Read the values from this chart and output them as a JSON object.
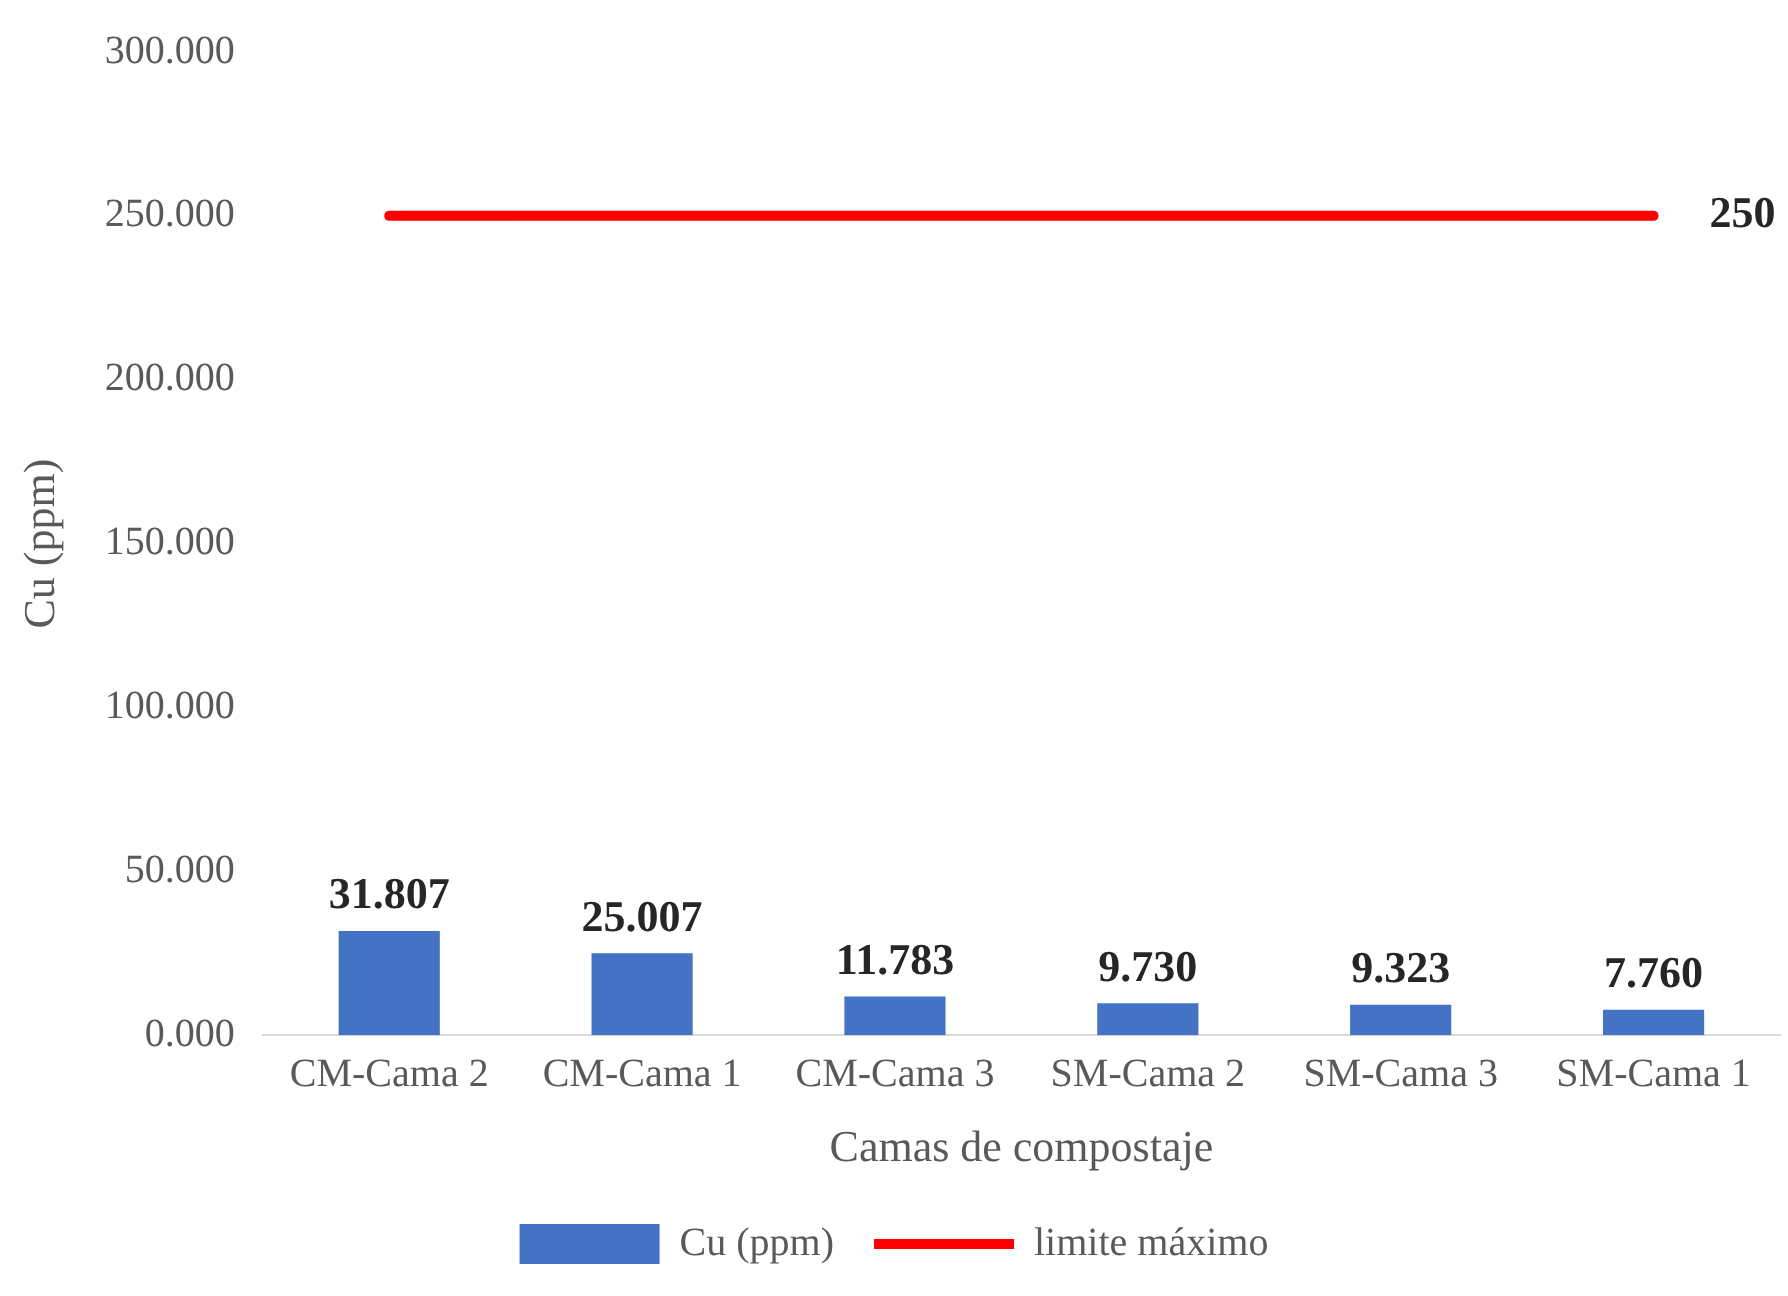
{
  "chart_data": {
    "type": "bar",
    "xlabel": "Camas de compostaje",
    "ylabel": "Cu (ppm)",
    "categories": [
      "CM-Cama 2",
      "CM-Cama 1",
      "CM-Cama 3",
      "SM-Cama 2",
      "SM-Cama 3",
      "SM-Cama 1"
    ],
    "series": [
      {
        "name": "Cu (ppm)",
        "color": "#4472c4",
        "values": [
          31.807,
          25.007,
          11.783,
          9.73,
          9.323,
          7.76
        ],
        "value_labels": [
          "31.807",
          "25.007",
          "11.783",
          "9.730",
          "9.323",
          "7.760"
        ]
      },
      {
        "name": "limite máximo",
        "type": "line",
        "color": "#ff0000",
        "marker": "none",
        "values": [
          250,
          250,
          250,
          250,
          250,
          250
        ],
        "value_labels": [
          null,
          null,
          null,
          null,
          null,
          "250"
        ]
      }
    ],
    "ylim": [
      0,
      300
    ],
    "yticks": [
      {
        "value": 0,
        "label": "0.000"
      },
      {
        "value": 50,
        "label": "50.000"
      },
      {
        "value": 100,
        "label": "100.000"
      },
      {
        "value": 150,
        "label": "150.000"
      },
      {
        "value": 200,
        "label": "200.000"
      },
      {
        "value": 250,
        "label": "250.000"
      },
      {
        "value": 300,
        "label": "300.000"
      }
    ],
    "grid": false,
    "legend": "bottom"
  }
}
